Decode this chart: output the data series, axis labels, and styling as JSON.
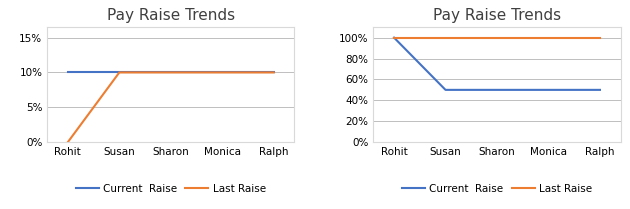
{
  "title": "Pay Raise Trends",
  "categories": [
    "Rohit",
    "Susan",
    "Sharon",
    "Monica",
    "Ralph"
  ],
  "chart1": {
    "current_raise": [
      0.1,
      0.1,
      0.1,
      0.1,
      0.1
    ],
    "last_raise": [
      0.0,
      0.1,
      0.1,
      0.1,
      0.1
    ],
    "ylim": [
      0,
      0.165
    ],
    "yticks": [
      0.0,
      0.05,
      0.1,
      0.15
    ],
    "yticklabels": [
      "0%",
      "5%",
      "10%",
      "15%"
    ]
  },
  "chart2": {
    "current_raise": [
      1.0,
      0.5,
      0.5,
      0.5,
      0.5
    ],
    "last_raise": [
      1.0,
      1.0,
      1.0,
      1.0,
      1.0
    ],
    "ylim": [
      0,
      1.1
    ],
    "yticks": [
      0.0,
      0.2,
      0.4,
      0.6,
      0.8,
      1.0
    ],
    "yticklabels": [
      "0%",
      "20%",
      "40%",
      "60%",
      "80%",
      "100%"
    ]
  },
  "current_raise_color": "#4472C4",
  "last_raise_color": "#ED7D31",
  "legend_labels": [
    "Current  Raise",
    "Last Raise"
  ],
  "background_color": "#FFFFFF",
  "grid_color": "#BFBFBF",
  "border_color": "#D9D9D9",
  "title_fontsize": 11,
  "label_fontsize": 7.5,
  "legend_fontsize": 7.5,
  "line_width": 1.5
}
